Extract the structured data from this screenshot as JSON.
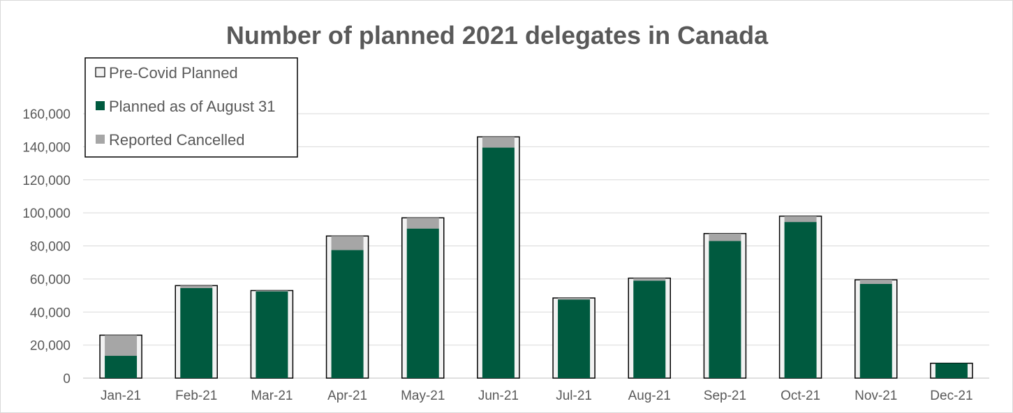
{
  "chart_data": {
    "type": "bar",
    "title": "Number of planned 2021 delegates in Canada",
    "xlabel": "",
    "ylabel": "",
    "ylim": [
      0,
      160000
    ],
    "y_ticks": [
      "0",
      "20,000",
      "40,000",
      "60,000",
      "80,000",
      "100,000",
      "120,000",
      "140,000",
      "160,000"
    ],
    "y_tick_values": [
      0,
      20000,
      40000,
      60000,
      80000,
      100000,
      120000,
      140000,
      160000
    ],
    "grid": true,
    "legend_position": "top-left",
    "categories": [
      "Jan-21",
      "Feb-21",
      "Mar-21",
      "Apr-21",
      "May-21",
      "Jun-21",
      "Jul-21",
      "Aug-21",
      "Sep-21",
      "Oct-21",
      "Nov-21",
      "Dec-21"
    ],
    "series": [
      {
        "name": "Pre-Covid Planned",
        "color": "#f2f2f2",
        "values": [
          26000,
          56000,
          53000,
          86000,
          97000,
          146000,
          48500,
          60500,
          87500,
          98000,
          59500,
          9000
        ]
      },
      {
        "name": "Planned as of August 31",
        "color": "#005a3f",
        "values": [
          13500,
          54500,
          52500,
          77500,
          90500,
          139500,
          47500,
          59000,
          83000,
          94500,
          57000,
          9000
        ]
      },
      {
        "name": "Reported Cancelled",
        "color": "#a6a6a6",
        "values": [
          12500,
          1500,
          500,
          8500,
          6500,
          6500,
          1000,
          1500,
          4500,
          3500,
          2500,
          0
        ]
      }
    ]
  }
}
